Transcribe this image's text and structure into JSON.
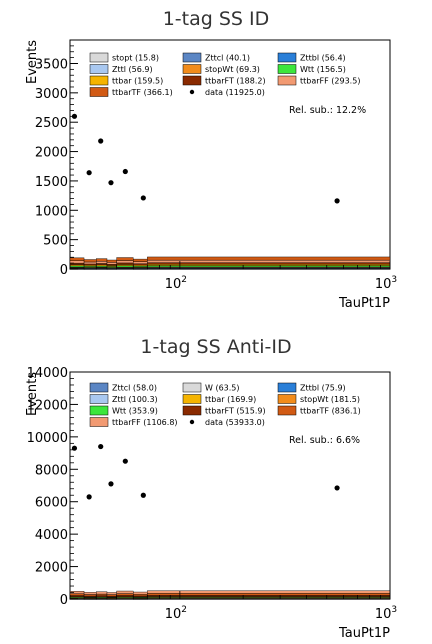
{
  "chart_data": [
    {
      "type": "histogram",
      "title": "1-tag SS ID",
      "xlabel": "TauPt1P",
      "ylabel": "Events",
      "x_scale": "log",
      "xlim": [
        30,
        1000
      ],
      "ylim": [
        0,
        3900
      ],
      "x_ticks": [
        {
          "value": 100,
          "base": "10",
          "exp": "2"
        },
        {
          "value": 1000,
          "base": "10",
          "exp": "3"
        }
      ],
      "y_ticks": [
        {
          "value": 0,
          "label": "0"
        },
        {
          "value": 500,
          "label": "500"
        },
        {
          "value": 1000,
          "label": "1000"
        },
        {
          "value": 1500,
          "label": "1500"
        },
        {
          "value": 2000,
          "label": "2000"
        },
        {
          "value": 2500,
          "label": "2500"
        },
        {
          "value": 3000,
          "label": "3000"
        },
        {
          "value": 3500,
          "label": "3500"
        }
      ],
      "annotation": "Rel. sub.: 12.2%",
      "bin_edges": [
        30,
        35,
        40,
        45,
        50,
        60,
        70,
        1000
      ],
      "stack": [
        {
          "name": "stopt (15.8)",
          "color": "#d9d9d9",
          "values": [
            2.1,
            1.8,
            2.0,
            1.7,
            2.2,
            1.9,
            2.3
          ]
        },
        {
          "name": "Zttcl (40.1)",
          "color": "#5b86c4",
          "values": [
            5.4,
            4.6,
            5.0,
            4.4,
            5.6,
            4.8,
            5.9
          ]
        },
        {
          "name": "Zttbl (56.4)",
          "color": "#2a7fd8",
          "values": [
            7.6,
            6.5,
            7.1,
            6.2,
            7.9,
            6.8,
            8.3
          ]
        },
        {
          "name": "Zttl (56.9)",
          "color": "#a9c8f0",
          "values": [
            7.7,
            6.5,
            7.2,
            6.2,
            8.0,
            6.9,
            8.4
          ]
        },
        {
          "name": "stopWt (69.3)",
          "color": "#f28c1b",
          "values": [
            9.4,
            8.0,
            8.7,
            7.6,
            9.7,
            8.4,
            10.2
          ]
        },
        {
          "name": "Wtt (156.5)",
          "color": "#3ce63c",
          "values": [
            21,
            18,
            20,
            17,
            22,
            19,
            23
          ]
        },
        {
          "name": "ttbar (159.5)",
          "color": "#f5b400",
          "values": [
            22,
            18,
            20,
            17,
            22,
            19,
            23
          ]
        },
        {
          "name": "ttbarFT (188.2)",
          "color": "#8a2a00",
          "values": [
            25,
            22,
            24,
            21,
            26,
            23,
            27
          ]
        },
        {
          "name": "ttbarFF (293.5)",
          "color": "#f29a72",
          "values": [
            40,
            34,
            37,
            32,
            41,
            35,
            43
          ]
        },
        {
          "name": "ttbarTF (366.1)",
          "color": "#d15a14",
          "values": [
            50,
            42,
            46,
            40,
            51,
            44,
            54
          ]
        }
      ],
      "data": {
        "name": "data (11925.0)",
        "points": [
          {
            "x": 31.5,
            "y": 2600
          },
          {
            "x": 37,
            "y": 1640
          },
          {
            "x": 42,
            "y": 2180
          },
          {
            "x": 47,
            "y": 1470
          },
          {
            "x": 55,
            "y": 1660
          },
          {
            "x": 67,
            "y": 1210
          },
          {
            "x": 560,
            "y": 1160
          }
        ]
      }
    },
    {
      "type": "histogram",
      "title": "1-tag SS Anti-ID",
      "xlabel": "TauPt1P",
      "ylabel": "Events",
      "x_scale": "log",
      "xlim": [
        30,
        1000
      ],
      "ylim": [
        0,
        14000
      ],
      "x_ticks": [
        {
          "value": 100,
          "base": "10",
          "exp": "2"
        },
        {
          "value": 1000,
          "base": "10",
          "exp": "3"
        }
      ],
      "y_ticks": [
        {
          "value": 0,
          "label": "0"
        },
        {
          "value": 2000,
          "label": "2000"
        },
        {
          "value": 4000,
          "label": "4000"
        },
        {
          "value": 6000,
          "label": "6000"
        },
        {
          "value": 8000,
          "label": "8000"
        },
        {
          "value": 10000,
          "label": "10000"
        },
        {
          "value": 12000,
          "label": "12000"
        },
        {
          "value": 14000,
          "label": "14000"
        }
      ],
      "annotation": "Rel. sub.: 6.6%",
      "bin_edges": [
        30,
        35,
        40,
        45,
        50,
        60,
        70,
        1000
      ],
      "stack": [
        {
          "name": "Zttcl (58.0)",
          "color": "#5b86c4",
          "values": [
            8,
            7,
            7.5,
            6.8,
            8.2,
            7.2,
            8.6
          ]
        },
        {
          "name": "W (63.5)",
          "color": "#d9d9d9",
          "values": [
            9,
            7.6,
            8.2,
            7.4,
            9,
            7.9,
            9.4
          ]
        },
        {
          "name": "Zttbl (75.9)",
          "color": "#2a7fd8",
          "values": [
            10.5,
            9,
            9.8,
            8.8,
            10.8,
            9.4,
            11.2
          ]
        },
        {
          "name": "Zttl (100.3)",
          "color": "#a9c8f0",
          "values": [
            14,
            12,
            13,
            11.6,
            14.3,
            12.4,
            14.8
          ]
        },
        {
          "name": "ttbar (169.9)",
          "color": "#f5b400",
          "values": [
            23.5,
            20,
            22,
            19.7,
            24.2,
            21,
            25
          ]
        },
        {
          "name": "stopWt (181.5)",
          "color": "#f28c1b",
          "values": [
            25,
            21.5,
            23.5,
            21,
            25.8,
            22.4,
            26.8
          ]
        },
        {
          "name": "Wtt (353.9)",
          "color": "#3ce63c",
          "values": [
            49,
            42,
            46,
            41,
            50,
            44,
            52
          ]
        },
        {
          "name": "ttbarFT (515.9)",
          "color": "#8a2a00",
          "values": [
            72,
            61,
            67,
            60,
            73,
            64,
            76
          ]
        },
        {
          "name": "ttbarTF (836.1)",
          "color": "#d15a14",
          "values": [
            116,
            99,
            108,
            97,
            119,
            104,
            123
          ]
        },
        {
          "name": "ttbarFF (1106.8)",
          "color": "#f29a72",
          "values": [
            154,
            131,
            143,
            128,
            157,
            137,
            163
          ]
        }
      ],
      "data": {
        "name": "data (53933.0)",
        "points": [
          {
            "x": 31.5,
            "y": 9300
          },
          {
            "x": 37,
            "y": 6300
          },
          {
            "x": 42,
            "y": 9400
          },
          {
            "x": 47,
            "y": 7100
          },
          {
            "x": 55,
            "y": 8500
          },
          {
            "x": 67,
            "y": 6400
          },
          {
            "x": 560,
            "y": 6850
          }
        ]
      }
    }
  ]
}
